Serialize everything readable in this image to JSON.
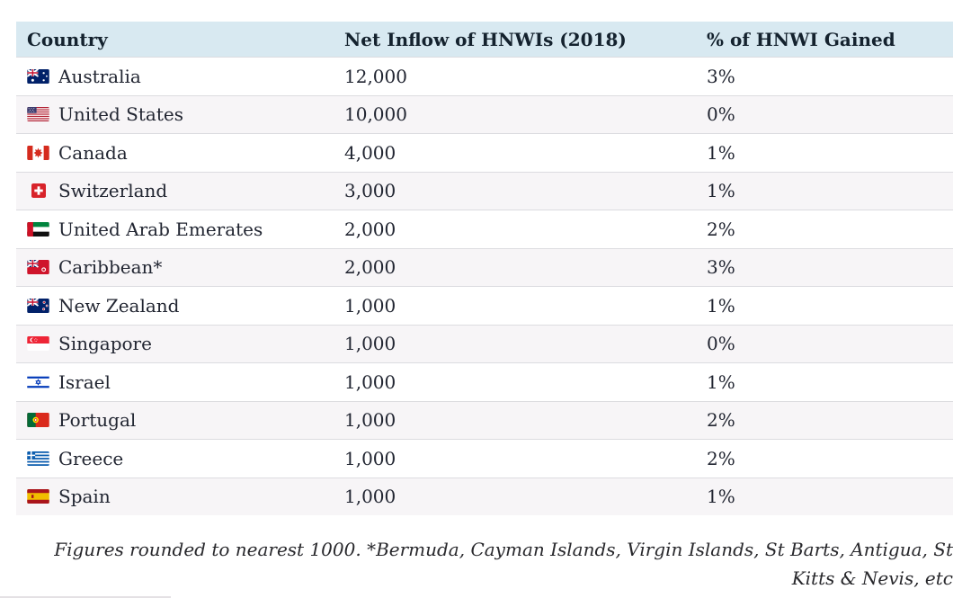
{
  "colors": {
    "header_bg": "#d8e9f1",
    "row_stripe": "#f7f5f7",
    "divider": "#dcdce0",
    "header_text": "#14222e",
    "body_text": "#212531"
  },
  "chart_data": {
    "type": "table",
    "title": "",
    "columns": [
      "Country",
      "Net Inflow of HNWIs (2018)",
      "% of HNWI Gained"
    ],
    "rows": [
      {
        "flag": "australia",
        "country": "Australia",
        "net_inflow": 12000,
        "net_inflow_display": "12,000",
        "pct_gained": "3%"
      },
      {
        "flag": "usa",
        "country": "United States",
        "net_inflow": 10000,
        "net_inflow_display": "10,000",
        "pct_gained": "0%"
      },
      {
        "flag": "canada",
        "country": "Canada",
        "net_inflow": 4000,
        "net_inflow_display": "4,000",
        "pct_gained": "1%"
      },
      {
        "flag": "switzerland",
        "country": "Switzerland",
        "net_inflow": 3000,
        "net_inflow_display": "3,000",
        "pct_gained": "1%"
      },
      {
        "flag": "uae",
        "country": "United Arab Emerates",
        "net_inflow": 2000,
        "net_inflow_display": "2,000",
        "pct_gained": "2%"
      },
      {
        "flag": "caribbean",
        "country": "Caribbean*",
        "net_inflow": 2000,
        "net_inflow_display": "2,000",
        "pct_gained": "3%"
      },
      {
        "flag": "new_zealand",
        "country": "New Zealand",
        "net_inflow": 1000,
        "net_inflow_display": "1,000",
        "pct_gained": "1%"
      },
      {
        "flag": "singapore",
        "country": "Singapore",
        "net_inflow": 1000,
        "net_inflow_display": "1,000",
        "pct_gained": "0%"
      },
      {
        "flag": "israel",
        "country": "Israel",
        "net_inflow": 1000,
        "net_inflow_display": "1,000",
        "pct_gained": "1%"
      },
      {
        "flag": "portugal",
        "country": "Portugal",
        "net_inflow": 1000,
        "net_inflow_display": "1,000",
        "pct_gained": "2%"
      },
      {
        "flag": "greece",
        "country": "Greece",
        "net_inflow": 1000,
        "net_inflow_display": "1,000",
        "pct_gained": "2%"
      },
      {
        "flag": "spain",
        "country": "Spain",
        "net_inflow": 1000,
        "net_inflow_display": "1,000",
        "pct_gained": "1%"
      }
    ],
    "footnote": "Figures rounded to nearest 1000. *Bermuda, Cayman Islands, Virgin Islands, St Barts, Antigua, St Kitts & Nevis, etc"
  }
}
